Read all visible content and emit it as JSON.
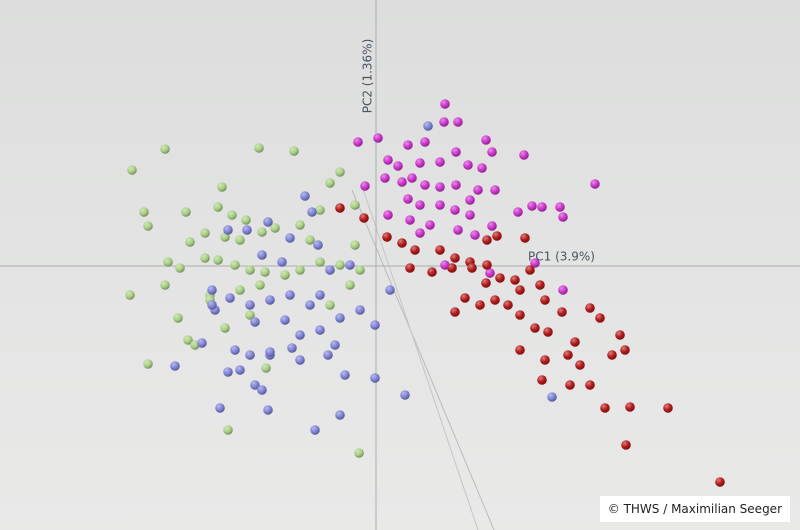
{
  "chart_data": {
    "type": "scatter",
    "xlabel": "PC1 (3.9%)",
    "ylabel": "PC2 (1.36%)",
    "xlim": [
      -3.76,
      4.24
    ],
    "ylim": [
      -2.64,
      2.66
    ],
    "series": [
      {
        "color": "#a9cf86",
        "x": [
          -2.11,
          -1.17,
          -0.82,
          -2.44,
          -2.32,
          -2.28,
          -1.9,
          -1.54,
          -1.58,
          -1.44,
          -1.3,
          -1.86,
          -1.71,
          -1.51,
          -1.36,
          -1.14,
          -1.01,
          -0.76,
          -0.56,
          -0.36,
          -0.46,
          -0.21,
          -2.08,
          -1.96,
          -1.71,
          -1.58,
          -1.41,
          -1.26,
          -1.11,
          -0.91,
          -0.76,
          -0.56,
          -0.36,
          -0.16,
          -2.46,
          -2.11,
          -1.66,
          -1.36,
          -1.16,
          -0.26,
          -0.46,
          -1.98,
          -1.51,
          -1.26,
          -1.88,
          -1.81,
          -2.28,
          -1.1,
          -1.48,
          -0.17,
          -1.66,
          -0.21,
          -0.66
        ],
        "values": [
          1.17,
          1.18,
          1.15,
          0.96,
          0.54,
          0.4,
          0.54,
          0.79,
          0.59,
          0.51,
          0.46,
          0.24,
          0.33,
          0.29,
          0.26,
          0.34,
          0.38,
          0.41,
          0.56,
          0.94,
          0.83,
          0.61,
          0.04,
          -0.02,
          0.08,
          0.06,
          0.01,
          -0.04,
          -0.06,
          -0.09,
          -0.04,
          0.04,
          0.01,
          -0.04,
          -0.29,
          -0.19,
          -0.29,
          -0.24,
          -0.19,
          -0.19,
          -0.39,
          -0.52,
          -0.62,
          -0.49,
          -0.74,
          -0.79,
          -0.98,
          -1.02,
          -1.64,
          -1.87,
          -0.34,
          0.21,
          0.26
        ]
      },
      {
        "color": "#7f82d6",
        "x": [
          0.52,
          -0.71,
          -0.64,
          -0.86,
          -1.08,
          -0.58,
          -1.14,
          -0.94,
          -0.46,
          -0.26,
          -1.64,
          -1.46,
          -1.26,
          -1.06,
          -0.86,
          -0.66,
          -0.56,
          -0.36,
          -0.16,
          -1.61,
          -1.21,
          -0.91,
          -0.76,
          -0.56,
          -0.41,
          -1.41,
          -1.26,
          -1.06,
          -0.84,
          -0.48,
          -1.74,
          -1.36,
          -1.48,
          -0.76,
          -0.01,
          -1.21,
          -1.14,
          -0.31,
          -0.01,
          0.29,
          -1.56,
          -1.08,
          -0.61,
          -0.36,
          0.14,
          -2.01,
          -1.48,
          -1.29,
          1.76,
          -1.64,
          -1.06
        ],
        "values": [
          1.4,
          0.7,
          0.54,
          0.28,
          0.44,
          0.21,
          0.11,
          0.04,
          -0.04,
          0.01,
          -0.24,
          -0.32,
          -0.39,
          -0.34,
          -0.29,
          -0.39,
          -0.29,
          -0.52,
          -0.44,
          -0.44,
          -0.56,
          -0.54,
          -0.69,
          -0.64,
          -0.79,
          -0.84,
          -0.89,
          -0.89,
          -0.82,
          -0.89,
          -0.77,
          -1.04,
          -1.06,
          -0.94,
          -0.59,
          -1.19,
          -1.24,
          -1.09,
          -1.12,
          -1.29,
          -1.42,
          -1.44,
          -1.64,
          -1.49,
          -0.24,
          -1.0,
          0.36,
          0.36,
          -1.31,
          -0.39,
          -0.86
        ]
      },
      {
        "color": "#cc35cc",
        "x": [
          0.69,
          0.82,
          0.68,
          0.02,
          -0.18,
          0.32,
          0.49,
          1.1,
          1.16,
          1.48,
          2.19,
          0.12,
          0.22,
          0.44,
          0.64,
          0.8,
          0.92,
          1.06,
          0.09,
          0.26,
          0.36,
          0.49,
          0.64,
          0.8,
          1.02,
          1.19,
          0.44,
          0.64,
          0.79,
          0.94,
          1.42,
          1.56,
          1.66,
          1.84,
          1.87,
          0.12,
          0.34,
          0.44,
          0.54,
          0.82,
          0.99,
          0.69,
          1.14,
          1.59,
          1.87,
          1.16,
          -0.11,
          0.32,
          0.94
        ],
        "values": [
          1.62,
          1.44,
          1.44,
          1.28,
          1.24,
          1.21,
          1.24,
          1.26,
          1.14,
          1.11,
          0.82,
          1.06,
          1.0,
          1.03,
          1.04,
          1.14,
          1.01,
          0.98,
          0.88,
          0.84,
          0.88,
          0.81,
          0.79,
          0.81,
          0.76,
          0.76,
          0.61,
          0.61,
          0.56,
          0.51,
          0.54,
          0.6,
          0.59,
          0.59,
          0.49,
          0.51,
          0.46,
          0.33,
          0.41,
          0.36,
          0.31,
          0.01,
          -0.07,
          0.03,
          -0.24,
          0.4,
          0.8,
          0.67,
          0.66
        ]
      },
      {
        "color": "#b3191a",
        "x": [
          -0.36,
          -0.12,
          0.11,
          0.26,
          0.39,
          0.64,
          0.79,
          0.94,
          1.11,
          1.21,
          1.49,
          0.34,
          0.56,
          0.76,
          0.96,
          1.11,
          1.24,
          1.39,
          1.54,
          1.44,
          1.64,
          1.69,
          0.89,
          1.04,
          1.19,
          1.32,
          1.44,
          0.79,
          1.59,
          1.72,
          1.86,
          2.14,
          2.24,
          2.44,
          2.49,
          1.99,
          1.92,
          2.04,
          2.36,
          1.69,
          1.44,
          1.66,
          1.94,
          2.14,
          2.5,
          2.29,
          2.54,
          2.92,
          3.44,
          1.1
        ],
        "values": [
          0.58,
          0.48,
          0.29,
          0.23,
          0.16,
          0.16,
          0.08,
          0.04,
          0.26,
          0.3,
          0.28,
          -0.02,
          -0.06,
          -0.02,
          -0.02,
          0.01,
          -0.12,
          -0.14,
          -0.04,
          -0.24,
          -0.19,
          -0.34,
          -0.32,
          -0.39,
          -0.34,
          -0.39,
          -0.49,
          -0.46,
          -0.62,
          -0.66,
          -0.46,
          -0.42,
          -0.52,
          -0.69,
          -0.84,
          -0.76,
          -0.89,
          -0.99,
          -0.89,
          -0.94,
          -0.84,
          -1.14,
          -1.19,
          -1.19,
          -1.79,
          -1.42,
          -1.41,
          -1.42,
          -2.16,
          -0.17
        ]
      }
    ]
  },
  "credit": "© THWS / Maximilian Seeger"
}
